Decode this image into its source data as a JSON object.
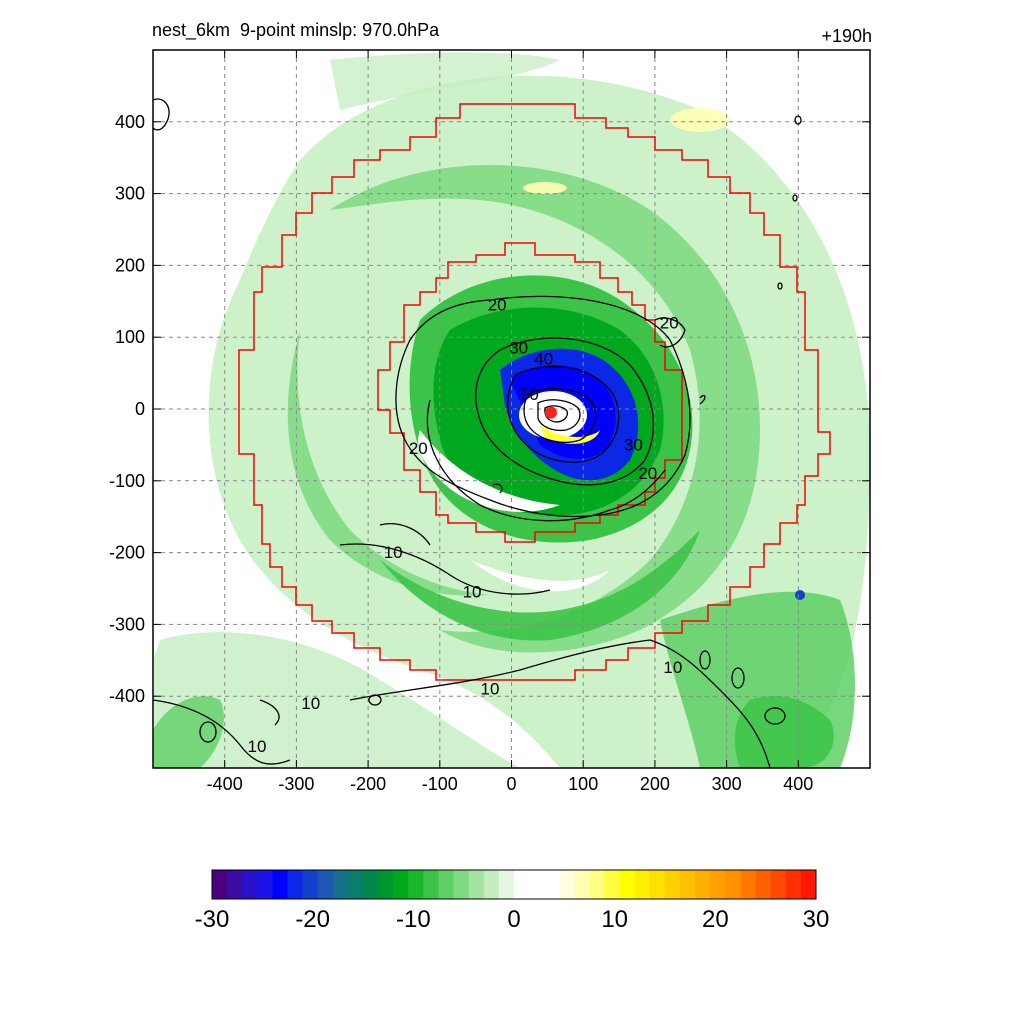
{
  "header": {
    "title_left": "nest_6km  9-point minslp: 970.0hPa",
    "title_right": "+190h"
  },
  "chart_data": {
    "type": "contour",
    "xlim": [
      -500,
      500
    ],
    "ylim": [
      -500,
      500
    ],
    "x_ticks": [
      -400,
      -300,
      -200,
      -100,
      0,
      100,
      200,
      300,
      400
    ],
    "y_ticks": [
      400,
      300,
      200,
      100,
      0,
      -100,
      -200,
      -300,
      -400
    ],
    "grid": true,
    "center_marker": {
      "x": 55,
      "y": -5,
      "color": "#ff2020"
    },
    "contour_levels": [
      10,
      20,
      30,
      40,
      50
    ],
    "contour_labels": [
      {
        "text": "20",
        "x": -20,
        "y": 140
      },
      {
        "text": "20",
        "x": 220,
        "y": 115
      },
      {
        "text": "30",
        "x": 10,
        "y": 80
      },
      {
        "text": "40",
        "x": 45,
        "y": 65
      },
      {
        "text": "50",
        "x": 25,
        "y": 15
      },
      {
        "text": "20",
        "x": -130,
        "y": -60
      },
      {
        "text": "30",
        "x": 170,
        "y": -55
      },
      {
        "text": "20",
        "x": 190,
        "y": -95
      },
      {
        "text": "10",
        "x": -165,
        "y": -205
      },
      {
        "text": "10",
        "x": -55,
        "y": -260
      },
      {
        "text": "10",
        "x": -30,
        "y": -395
      },
      {
        "text": "10",
        "x": 225,
        "y": -365
      },
      {
        "text": "10",
        "x": -280,
        "y": -415
      },
      {
        "text": "10",
        "x": -355,
        "y": -475
      }
    ],
    "colorbar": {
      "min": -30,
      "max": 30,
      "tick_labels": [
        "-30",
        "-20",
        "-10",
        "0",
        "10",
        "20",
        "30"
      ],
      "colors": [
        "#4b0082",
        "#3a0ca3",
        "#2a10c8",
        "#1a14e6",
        "#0000ff",
        "#0a28e6",
        "#1440cc",
        "#1e58b2",
        "#146e8c",
        "#0a7e6a",
        "#00874a",
        "#00962e",
        "#00a81e",
        "#19b82a",
        "#3cc448",
        "#5ed065",
        "#80da82",
        "#a2e4a0",
        "#c4eec0",
        "#e4f7e0",
        "#ffffff",
        "#ffffff",
        "#ffffff",
        "#ffffe0",
        "#ffffb4",
        "#ffff80",
        "#ffff40",
        "#ffff00",
        "#fff000",
        "#ffe000",
        "#ffd000",
        "#ffc000",
        "#ffb000",
        "#ffa000",
        "#ff9000",
        "#ff7800",
        "#ff6000",
        "#ff4800",
        "#ff3000",
        "#ff1800"
      ]
    }
  }
}
